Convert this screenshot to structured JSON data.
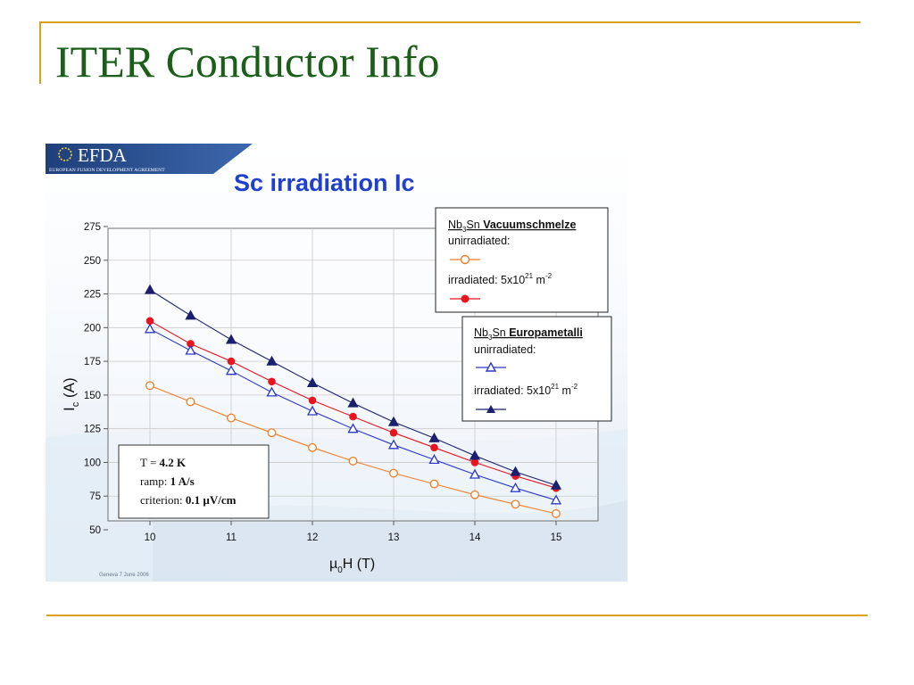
{
  "slide_title": "ITER Conductor Info",
  "logo": {
    "name": "EFDA",
    "subtitle": "EUROPEAN FUSION DEVELOPMENT AGREEMENT"
  },
  "footer_text": "Geneva 7 June 2006",
  "colors": {
    "title": "#1a5e1a",
    "rule": "#d9a21b",
    "chart_title": "#1f3fd0",
    "vac_unirr": "#f07d28",
    "vac_irr": "#e8141e",
    "euro_unirr": "#2c38c8",
    "euro_irr": "#1a1f6e"
  },
  "conditions": {
    "t_label": "T = ",
    "t_value": "4.2 K",
    "ramp_label": "ramp: ",
    "ramp_value": "1 A/s",
    "crit_label": "criterion: ",
    "crit_value": "0.1 µV/cm"
  },
  "legend": {
    "vac": {
      "material": "Nb",
      "sub": "3",
      "material2": "Sn ",
      "maker": "Vacuumschmelze",
      "unirr": "unirradiated:",
      "irr": "irradiated: 5x10",
      "irr_exp": "21",
      "irr_unit": " m",
      "irr_unit_exp": "-2"
    },
    "euro": {
      "material": "Nb",
      "sub": "3",
      "material2": "Sn ",
      "maker": "Europametalli",
      "unirr": "unirradiated:",
      "irr": "irradiated: 5x10",
      "irr_exp": "21",
      "irr_unit": " m",
      "irr_unit_exp": "-2"
    }
  },
  "chart_data": {
    "type": "line",
    "title": "Sc irradiation Ic",
    "xlabel": "µ0H (T)",
    "xlabel_parts": {
      "mu": "µ",
      "sub": "0",
      "rest": "H (T)"
    },
    "ylabel": "Ic (A)",
    "ylabel_parts": {
      "main": "I",
      "sub": "c",
      "rest": " (A)"
    },
    "xlim": [
      10,
      15
    ],
    "ylim": [
      50,
      275
    ],
    "xticks": [
      10,
      11,
      12,
      13,
      14,
      15
    ],
    "yticks": [
      50,
      75,
      100,
      125,
      150,
      175,
      200,
      225,
      250,
      275
    ],
    "grid": true,
    "x": [
      10,
      10.5,
      11,
      11.5,
      12,
      12.5,
      13,
      13.5,
      14,
      14.5,
      15
    ],
    "series": [
      {
        "name": "Nb3Sn Vacuumschmelze unirradiated",
        "marker": "open-circle",
        "color": "#f07d28",
        "values": [
          157,
          145,
          133,
          122,
          111,
          101,
          92,
          84,
          76,
          69,
          62
        ]
      },
      {
        "name": "Nb3Sn Vacuumschmelze irradiated 5x10^21 m^-2",
        "marker": "filled-circle",
        "color": "#e8141e",
        "values": [
          205,
          188,
          175,
          160,
          146,
          134,
          122,
          111,
          100,
          90,
          81
        ]
      },
      {
        "name": "Nb3Sn Europametalli unirradiated",
        "marker": "open-triangle",
        "color": "#2c38c8",
        "values": [
          199,
          183,
          168,
          152,
          138,
          125,
          113,
          102,
          91,
          81,
          72
        ]
      },
      {
        "name": "Nb3Sn Europametalli irradiated 5x10^21 m^-2",
        "marker": "filled-triangle",
        "color": "#1a1f6e",
        "values": [
          228,
          209,
          191,
          175,
          159,
          144,
          130,
          118,
          105,
          93,
          83
        ]
      }
    ]
  }
}
